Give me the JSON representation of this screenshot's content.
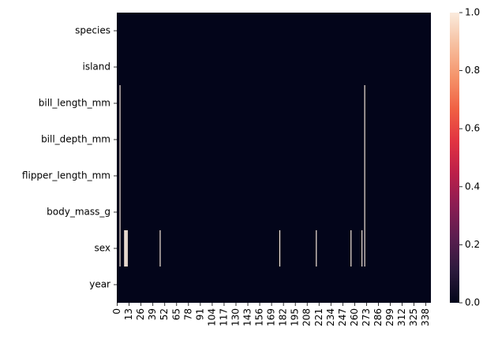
{
  "chart_data": {
    "type": "heatmap",
    "rows": [
      "species",
      "island",
      "bill_length_mm",
      "bill_depth_mm",
      "flipper_length_mm",
      "body_mass_g",
      "sex",
      "year"
    ],
    "xlim": [
      0,
      344
    ],
    "xticks": [
      0,
      13,
      26,
      39,
      52,
      65,
      78,
      91,
      104,
      117,
      130,
      143,
      156,
      169,
      182,
      195,
      208,
      221,
      234,
      247,
      260,
      273,
      286,
      299,
      312,
      325,
      338
    ],
    "background_value": 0,
    "cells": [
      {
        "row": 2,
        "col": 3,
        "value": 1
      },
      {
        "row": 2,
        "col": 271,
        "value": 1
      },
      {
        "row": 3,
        "col": 3,
        "value": 1
      },
      {
        "row": 3,
        "col": 271,
        "value": 1
      },
      {
        "row": 4,
        "col": 3,
        "value": 1
      },
      {
        "row": 4,
        "col": 271,
        "value": 1
      },
      {
        "row": 5,
        "col": 3,
        "value": 1
      },
      {
        "row": 5,
        "col": 271,
        "value": 1
      },
      {
        "row": 6,
        "col": 3,
        "value": 1
      },
      {
        "row": 6,
        "col": 8,
        "value": 1
      },
      {
        "row": 6,
        "col": 9,
        "value": 1
      },
      {
        "row": 6,
        "col": 10,
        "value": 1
      },
      {
        "row": 6,
        "col": 11,
        "value": 1
      },
      {
        "row": 6,
        "col": 47,
        "value": 1
      },
      {
        "row": 6,
        "col": 178,
        "value": 1
      },
      {
        "row": 6,
        "col": 218,
        "value": 1
      },
      {
        "row": 6,
        "col": 256,
        "value": 1
      },
      {
        "row": 6,
        "col": 268,
        "value": 1
      },
      {
        "row": 6,
        "col": 271,
        "value": 1
      }
    ],
    "clim": [
      0,
      1
    ],
    "colorbar_ticks": [
      {
        "value": 0,
        "label": "0.0"
      },
      0.2,
      0.4,
      0.6,
      0.8,
      {
        "value": 1,
        "label": "1.0"
      }
    ],
    "cmap_colors": [
      "#03051a",
      "#2b1a3c",
      "#5a1e4f",
      "#8a1e53",
      "#bb1f49",
      "#e13342",
      "#f06043",
      "#f5936a",
      "#f6bf9f",
      "#faebdd"
    ]
  }
}
